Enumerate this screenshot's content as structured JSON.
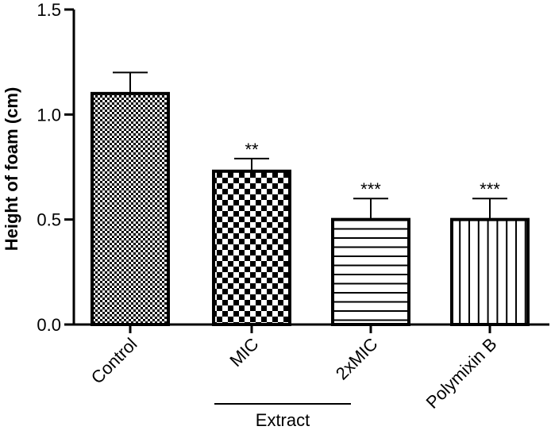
{
  "chart_data": {
    "type": "bar",
    "title": "",
    "xlabel": "",
    "ylabel": "Height of foam (cm)",
    "ylim": [
      0,
      1.5
    ],
    "yticks": [
      0.0,
      0.5,
      1.0,
      1.5
    ],
    "ytick_labels": [
      "0.0",
      "0.5",
      "1.0",
      "1.5"
    ],
    "grid": false,
    "categories": [
      "Control",
      "MIC",
      "2xMIC",
      "Polymixin B"
    ],
    "values": [
      1.1,
      0.73,
      0.5,
      0.5
    ],
    "errors": [
      0.1,
      0.06,
      0.1,
      0.1
    ],
    "significance": [
      "",
      "**",
      "***",
      "***"
    ],
    "patterns": [
      "fine-checker",
      "coarse-checker",
      "horizontal-lines",
      "vertical-lines"
    ],
    "group_label": {
      "text": "Extract",
      "categories": [
        "MIC",
        "2xMIC"
      ]
    }
  }
}
